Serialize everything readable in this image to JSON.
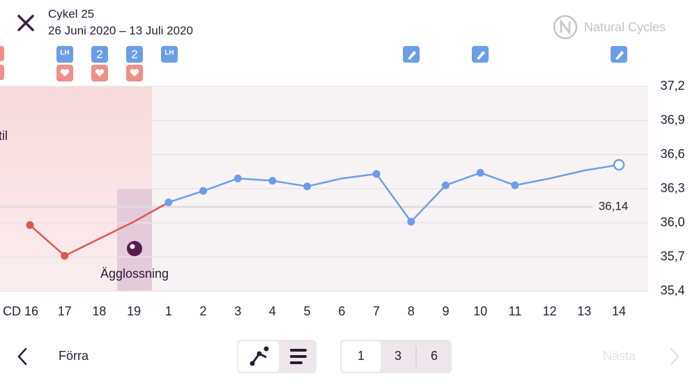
{
  "header": {
    "title": "Cykel 25",
    "dates": "26 Juni 2020 – 13 Juli 2020",
    "brand": "Natural Cycles"
  },
  "badges": [
    "LH",
    "2",
    "2",
    "LH"
  ],
  "chart_data": {
    "type": "line",
    "categories": [
      "CD 16",
      "17",
      "18",
      "19",
      "1",
      "2",
      "3",
      "4",
      "5",
      "6",
      "7",
      "8",
      "9",
      "10",
      "11",
      "12",
      "13",
      "14"
    ],
    "series": [
      {
        "color": "#e0564a",
        "values": [
          35.98,
          35.71,
          35.86,
          36.01,
          36.18,
          null,
          null,
          null,
          null,
          null,
          null,
          null,
          null,
          null,
          null,
          null,
          null,
          null
        ],
        "markers": [
          true,
          true,
          false,
          false,
          false,
          false,
          false,
          false,
          false,
          false,
          false,
          false,
          false,
          false,
          false,
          false,
          false,
          false
        ]
      },
      {
        "color": "#6b9ee8",
        "values": [
          null,
          null,
          null,
          null,
          36.18,
          36.28,
          36.39,
          36.37,
          36.32,
          36.39,
          36.43,
          36.01,
          36.33,
          36.44,
          36.33,
          36.39,
          36.46,
          36.51
        ],
        "markers": [
          false,
          false,
          false,
          false,
          true,
          true,
          true,
          true,
          true,
          false,
          true,
          true,
          true,
          true,
          true,
          false,
          false,
          true
        ]
      }
    ],
    "ylim": [
      35.4,
      37.2
    ],
    "yticks": [
      {
        "value": 37.2,
        "label": "37,2"
      },
      {
        "value": 36.9,
        "label": "36,9"
      },
      {
        "value": 36.6,
        "label": "36,6"
      },
      {
        "value": 36.3,
        "label": "36,3"
      },
      {
        "value": 36.0,
        "label": "36,0"
      },
      {
        "value": 35.7,
        "label": "35,7"
      },
      {
        "value": 35.4,
        "label": "35,4"
      }
    ],
    "grid": true,
    "reference": {
      "value": 36.14,
      "label": "36,14"
    },
    "annotations": [
      "til",
      "Ägglossning"
    ]
  },
  "footer": {
    "prev": "Förra",
    "periods": [
      "1",
      "3",
      "6"
    ],
    "next": "Nästa"
  }
}
